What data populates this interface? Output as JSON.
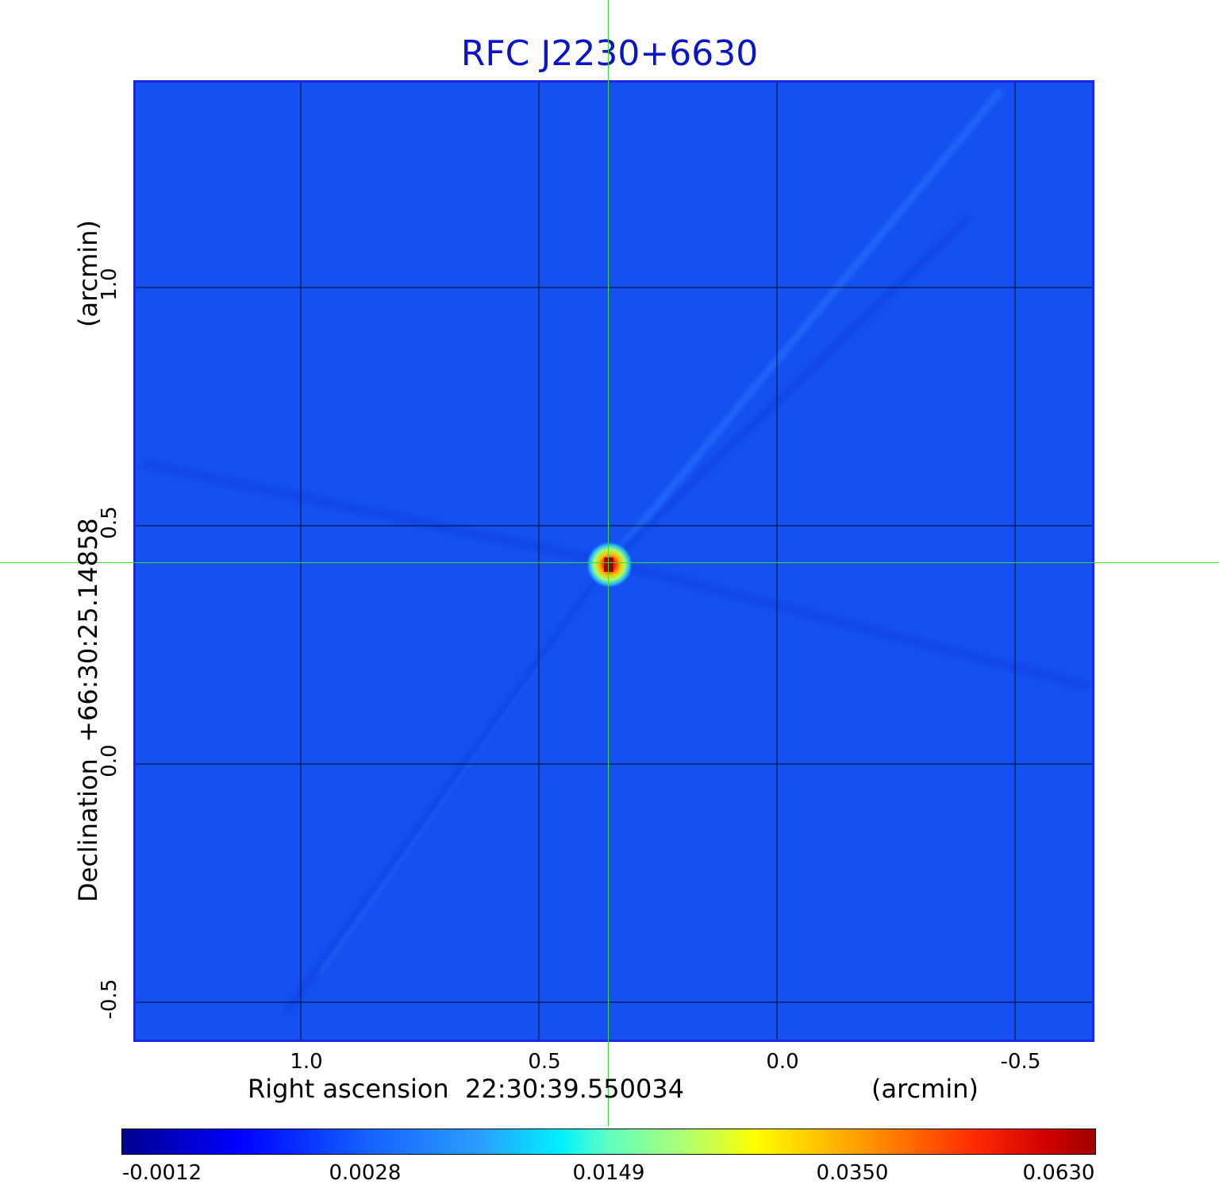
{
  "title": "RFC J2230+6630",
  "x_axis": {
    "label": "Right ascension  22:30:39.550034",
    "unit": "(arcmin)",
    "ticks": [
      "1.0",
      "0.5",
      "0.0",
      "-0.5"
    ]
  },
  "y_axis": {
    "label": "Declination  +66:30:25.14858",
    "unit": "(arcmin)",
    "ticks": [
      "1.0",
      "0.5",
      "0.0",
      "-0.5"
    ]
  },
  "colorbar": {
    "labels": [
      "-0.0012",
      "0.0028",
      "0.0149",
      "0.0350",
      "0.0630"
    ],
    "colormap": "jet"
  },
  "colors": {
    "title": "#0a14c8",
    "frame": "#1a28e0",
    "crosshair": "#3cdc3c",
    "background_map": "#1550f0",
    "grid": "#000000"
  },
  "source": {
    "peak_value": 0.063
  }
}
